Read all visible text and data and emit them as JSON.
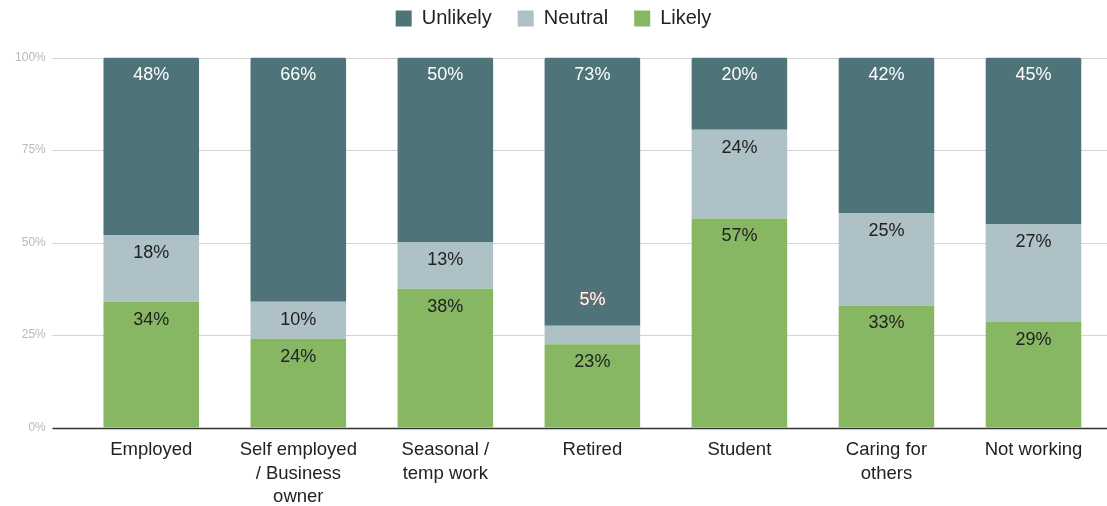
{
  "chart_data": {
    "type": "bar",
    "stacked": true,
    "categories": [
      "Employed",
      "Self employed / Business owner",
      "Seasonal / temp work",
      "Retired",
      "Student",
      "Caring for others",
      "Not working"
    ],
    "series": [
      {
        "name": "Likely",
        "color": "#87b762",
        "values": [
          34,
          24,
          37.5,
          22.5,
          56.5,
          33,
          28.5
        ],
        "value_labels": [
          "34%",
          "24%",
          "38%",
          "23%",
          "57%",
          "33%",
          "29%"
        ]
      },
      {
        "name": "Neutral",
        "color": "#adc1c6",
        "values": [
          18,
          10,
          12.5,
          5,
          24,
          25,
          26.5
        ],
        "value_labels": [
          "18%",
          "10%",
          "13%",
          "5%",
          "24%",
          "25%",
          "27%"
        ]
      },
      {
        "name": "Unlikely",
        "color": "#4e7379",
        "values": [
          48,
          66,
          50,
          72.5,
          19.5,
          42,
          45
        ],
        "value_labels": [
          "48%",
          "66%",
          "50%",
          "73%",
          "20%",
          "42%",
          "45%"
        ]
      }
    ],
    "ylim": [
      0,
      100
    ],
    "yticks": [
      {
        "value": 0,
        "label": "0%"
      },
      {
        "value": 25,
        "label": "25%"
      },
      {
        "value": 50,
        "label": "50%"
      },
      {
        "value": 75,
        "label": "75%"
      },
      {
        "value": 100,
        "label": "100%"
      }
    ],
    "grid": "y",
    "legend": "top"
  }
}
